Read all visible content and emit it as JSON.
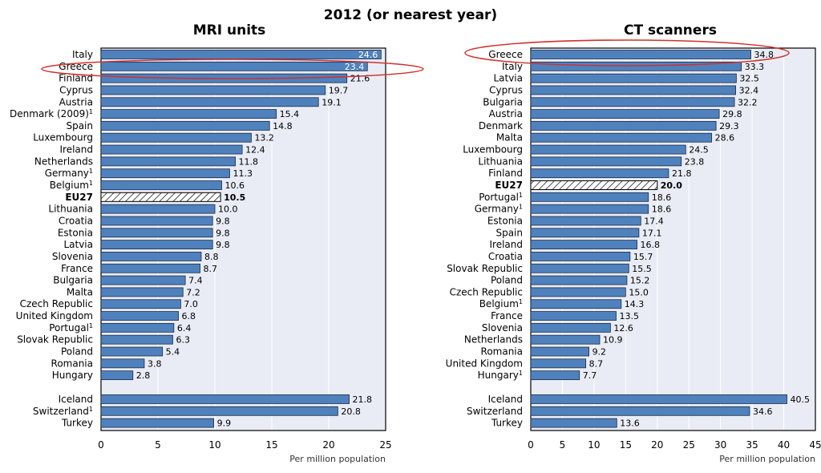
{
  "title": "2012 (or nearest year)",
  "footnote_mark": "1",
  "chart_data": [
    {
      "type": "bar",
      "orientation": "horizontal",
      "title": "MRI units",
      "xlabel": "Per million population",
      "xlim": [
        0,
        25
      ],
      "xticks": [
        0,
        5,
        10,
        15,
        20,
        25
      ],
      "grid": true,
      "categories": [
        "Italy",
        "Greece",
        "Finland",
        "Cyprus",
        "Austria",
        "Denmark (2009)",
        "Spain",
        "Luxembourg",
        "Ireland",
        "Netherlands",
        "Germany",
        "Belgium",
        "EU27",
        "Lithuania",
        "Croatia",
        "Estonia",
        "Latvia",
        "Slovenia",
        "France",
        "Bulgaria",
        "Malta",
        "Czech Republic",
        "United Kingdom",
        "Portugal",
        "Slovak Republic",
        "Poland",
        "Romania",
        "Hungary",
        "Iceland",
        "Switzerland",
        "Turkey"
      ],
      "values": [
        24.6,
        23.4,
        21.6,
        19.7,
        19.1,
        15.4,
        14.8,
        13.2,
        12.4,
        11.8,
        11.3,
        10.6,
        10.5,
        10.0,
        9.8,
        9.8,
        9.8,
        8.8,
        8.7,
        7.4,
        7.2,
        7.0,
        6.8,
        6.4,
        6.3,
        5.4,
        3.8,
        2.8,
        21.8,
        20.8,
        9.9
      ],
      "value_labels": [
        "24.6",
        "23.4",
        "21.6",
        "19.7",
        "19.1",
        "15.4",
        "14.8",
        "13.2",
        "12.4",
        "11.8",
        "11.3",
        "10.6",
        "10.5",
        "10.0",
        "9.8",
        "9.8",
        "9.8",
        "8.8",
        "8.7",
        "7.4",
        "7.2",
        "7.0",
        "6.8",
        "6.4",
        "6.3",
        "5.4",
        "3.8",
        "2.8",
        "21.8",
        "20.8",
        "9.9"
      ],
      "footnoted": [
        "Denmark (2009)",
        "Germany",
        "Belgium",
        "Portugal",
        "Switzerland"
      ],
      "aggregate": "EU27",
      "highlighted": "Greece",
      "separated_group": [
        "Iceland",
        "Switzerland",
        "Turkey"
      ]
    },
    {
      "type": "bar",
      "orientation": "horizontal",
      "title": "CT scanners",
      "xlabel": "Per million population",
      "xlim": [
        0,
        45
      ],
      "xticks": [
        0,
        5,
        10,
        15,
        20,
        25,
        30,
        35,
        40,
        45
      ],
      "grid": true,
      "categories": [
        "Greece",
        "Italy",
        "Latvia",
        "Cyprus",
        "Bulgaria",
        "Austria",
        "Denmark",
        "Malta",
        "Luxembourg",
        "Lithuania",
        "Finland",
        "EU27",
        "Portugal",
        "Germany",
        "Estonia",
        "Spain",
        "Ireland",
        "Croatia",
        "Slovak Republic",
        "Poland",
        "Czech Republic",
        "Belgium",
        "France",
        "Slovenia",
        "Netherlands",
        "Romania",
        "United Kingdom",
        "Hungary",
        "Iceland",
        "Switzerland",
        "Turkey"
      ],
      "values": [
        34.8,
        33.3,
        32.5,
        32.4,
        32.2,
        29.8,
        29.3,
        28.6,
        24.5,
        23.8,
        21.8,
        20.0,
        18.6,
        18.6,
        17.4,
        17.1,
        16.8,
        15.7,
        15.5,
        15.2,
        15.0,
        14.3,
        13.5,
        12.6,
        10.9,
        9.2,
        8.7,
        7.7,
        40.5,
        34.6,
        13.6
      ],
      "value_labels": [
        "34.8",
        "33.3",
        "32.5",
        "32.4",
        "32.2",
        "29.8",
        "29.3",
        "28.6",
        "24.5",
        "23.8",
        "21.8",
        "20.0",
        "18.6",
        "18.6",
        "17.4",
        "17.1",
        "16.8",
        "15.7",
        "15.5",
        "15.2",
        "15.0",
        "14.3",
        "13.5",
        "12.6",
        "10.9",
        "9.2",
        "8.7",
        "7.7",
        "40.5",
        "34.6",
        "13.6"
      ],
      "footnoted": [
        "Portugal",
        "Germany",
        "Belgium",
        "Hungary"
      ],
      "aggregate": "EU27",
      "highlighted": "Greece",
      "separated_group": [
        "Iceland",
        "Switzerland",
        "Turkey"
      ]
    }
  ]
}
